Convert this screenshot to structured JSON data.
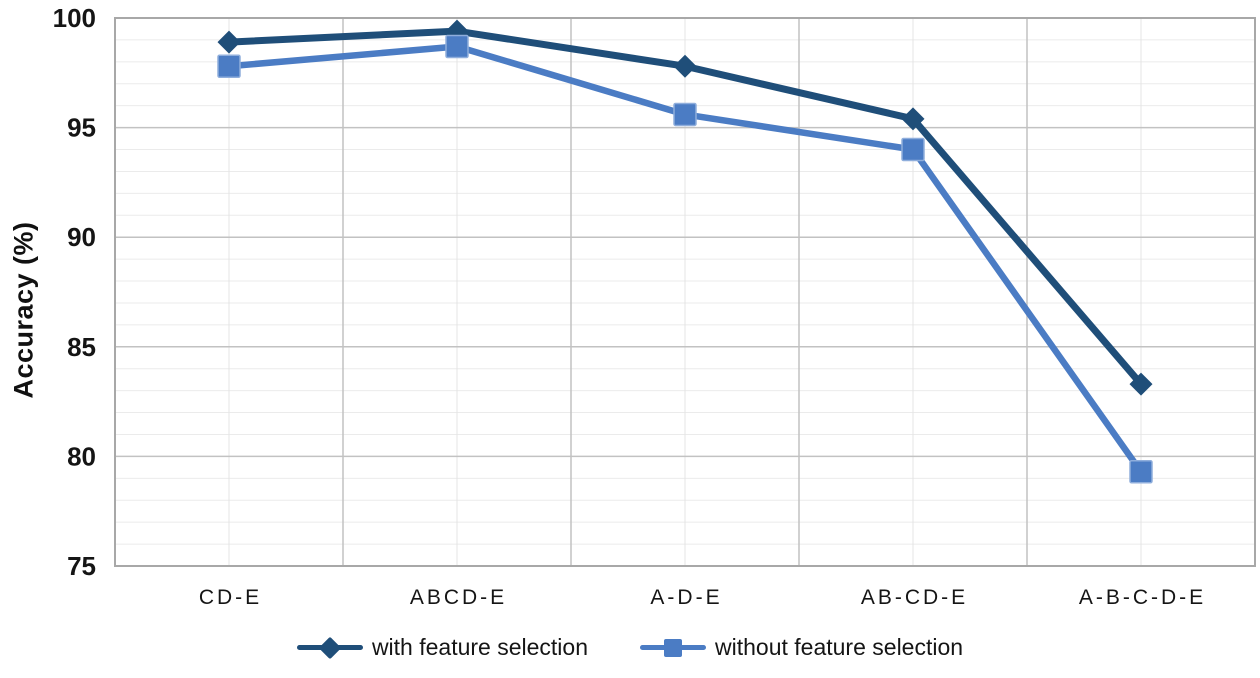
{
  "chart_data": {
    "type": "line",
    "title": "",
    "xlabel": "",
    "ylabel": "Accuracy (%)",
    "ylim": [
      75,
      100
    ],
    "yticks": [
      100,
      95,
      90,
      85,
      80,
      75
    ],
    "ytick_minor_step": 1,
    "grid": "major and minor, horizontal and vertical",
    "legend_position": "bottom",
    "categories": [
      "CD-E",
      "ABCD-E",
      "A-D-E",
      "AB-CD-E",
      "A-B-C-D-E"
    ],
    "series": [
      {
        "name": "with feature selection",
        "marker": "diamond",
        "color": "#1F4E79",
        "values": [
          98.9,
          99.4,
          97.8,
          95.4,
          83.3
        ]
      },
      {
        "name": "without feature selection",
        "marker": "square",
        "color": "#4B7CC4",
        "marker_border_color": "#8FAEDC",
        "values": [
          97.8,
          98.7,
          95.6,
          94.0,
          79.3
        ]
      }
    ],
    "colors": {
      "major_grid": "#C2C2C2",
      "minor_grid": "#EBEBEB",
      "minor_grid_vertical": "#E4E4E4",
      "plot_border": "#A8A8A8",
      "text": "#151515"
    }
  }
}
